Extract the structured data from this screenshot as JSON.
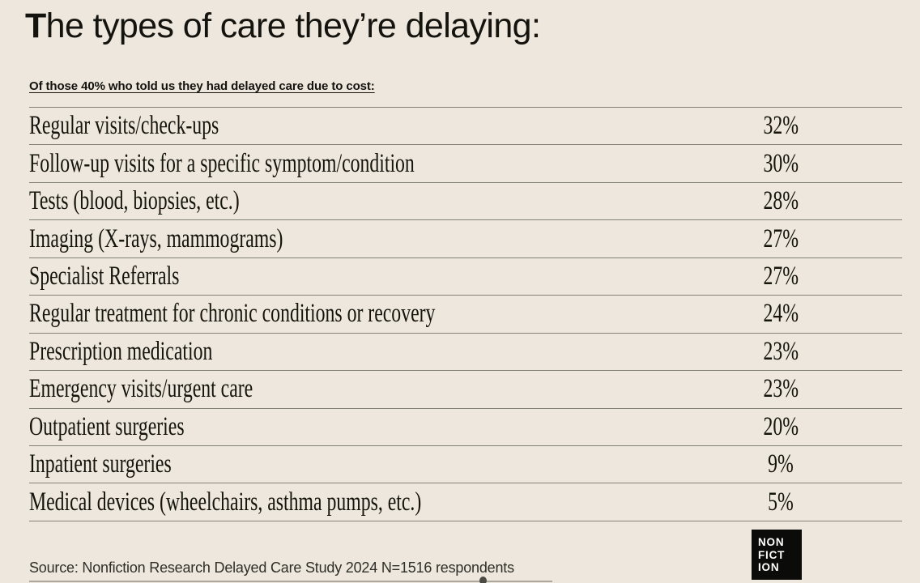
{
  "title": "The types of care they’re delaying:",
  "subtitle": "Of those 40% who told us they had delayed care due to cost:",
  "table": {
    "rows": [
      {
        "label": "Regular visits/check-ups",
        "value": "32%"
      },
      {
        "label": "Follow-up visits for a specific symptom/condition",
        "value": "30%"
      },
      {
        "label": "Tests (blood, biopsies, etc.)",
        "value": "28%"
      },
      {
        "label": "Imaging (X-rays, mammograms)",
        "value": "27%"
      },
      {
        "label": "Specialist Referrals",
        "value": "27%"
      },
      {
        "label": "Regular treatment for chronic conditions or recovery",
        "value": "24%"
      },
      {
        "label": "Prescription medication",
        "value": "23%"
      },
      {
        "label": "Emergency visits/urgent care",
        "value": "23%"
      },
      {
        "label": "Outpatient surgeries",
        "value": "20%"
      },
      {
        "label": "Inpatient surgeries",
        "value": "9%"
      },
      {
        "label": "Medical devices (wheelchairs, asthma pumps, etc.)",
        "value": "5%"
      }
    ]
  },
  "source": "Source: Nonfiction Research Delayed Care Study 2024 N=1516 respondents",
  "logo": {
    "lines": [
      "NON",
      "FICT",
      "ION"
    ]
  },
  "colors": {
    "background": "#EDE7DE",
    "text": "#14130E",
    "rule": "#828177",
    "logo_background": "#0B0B09",
    "logo_text": "#FFFFFF"
  },
  "chart_data": {
    "type": "table",
    "title": "The types of care they’re delaying:",
    "subtitle": "Of those 40% who told us they had delayed care due to cost:",
    "categories": [
      "Regular visits/check-ups",
      "Follow-up visits for a specific symptom/condition",
      "Tests (blood, biopsies, etc.)",
      "Imaging (X-rays, mammograms)",
      "Specialist Referrals",
      "Regular treatment for chronic conditions or recovery",
      "Prescription medication",
      "Emergency visits/urgent care",
      "Outpatient surgeries",
      "Inpatient surgeries",
      "Medical devices (wheelchairs, asthma pumps, etc.)"
    ],
    "values": [
      32,
      30,
      28,
      27,
      27,
      24,
      23,
      23,
      20,
      9,
      5
    ],
    "unit": "%",
    "source": "Source: Nonfiction Research Delayed Care Study 2024 N=1516 respondents"
  }
}
